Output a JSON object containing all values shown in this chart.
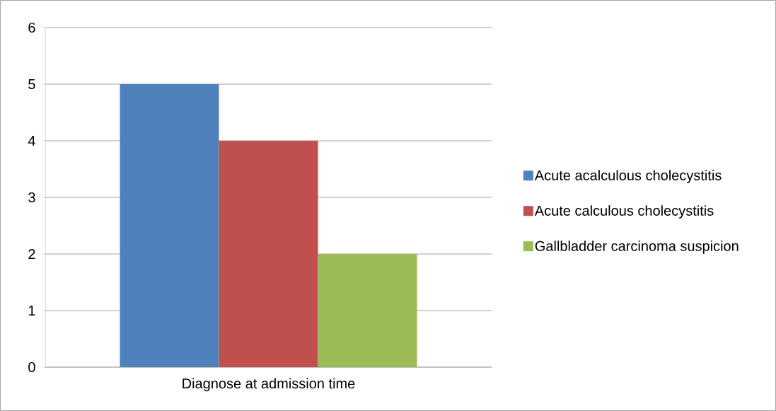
{
  "chart_data": {
    "type": "bar",
    "categories": [
      "Diagnose at admission time"
    ],
    "series": [
      {
        "name": "Acute acalculous cholecystitis",
        "color": "#4f81bd",
        "values": [
          5
        ]
      },
      {
        "name": "Acute calculous cholecystitis",
        "color": "#c0504d",
        "values": [
          4
        ]
      },
      {
        "name": "Gallbladder carcinoma suspicion",
        "color": "#9bbb59",
        "values": [
          2
        ]
      }
    ],
    "ylim": [
      0,
      6
    ],
    "yticks": [
      0,
      1,
      2,
      3,
      4,
      5,
      6
    ],
    "grid": "y",
    "legend": "right"
  }
}
